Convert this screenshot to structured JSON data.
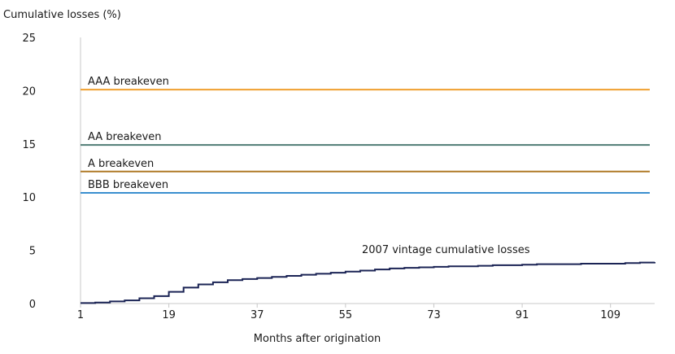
{
  "chart_data": {
    "type": "line",
    "ylabel": "Cumulative losses (%)",
    "xlabel": "Months after origination",
    "ylim": [
      0,
      25
    ],
    "xlim": [
      1,
      118
    ],
    "yticks": [
      0,
      5,
      10,
      15,
      20,
      25
    ],
    "xticks": [
      1,
      19,
      37,
      55,
      73,
      91,
      109
    ],
    "grid": false,
    "series": [
      {
        "name": "AAA breakeven",
        "color": "#F0A030",
        "x": [
          1,
          117
        ],
        "values": [
          20.1,
          20.1
        ]
      },
      {
        "name": "AA breakeven",
        "color": "#4F7C74",
        "x": [
          1,
          117
        ],
        "values": [
          14.9,
          14.9
        ]
      },
      {
        "name": "A breakeven",
        "color": "#B07A28",
        "x": [
          1,
          117
        ],
        "values": [
          12.4,
          12.4
        ]
      },
      {
        "name": "BBB breakeven",
        "color": "#3A8FCF",
        "x": [
          1,
          117
        ],
        "values": [
          10.4,
          10.4
        ]
      },
      {
        "name": "2007 vintage cumulative losses",
        "color": "#1B2455",
        "x": [
          1,
          4,
          7,
          10,
          13,
          16,
          19,
          22,
          25,
          28,
          31,
          34,
          37,
          40,
          43,
          46,
          49,
          52,
          55,
          58,
          61,
          64,
          67,
          70,
          73,
          76,
          79,
          82,
          85,
          88,
          91,
          94,
          97,
          100,
          103,
          106,
          109,
          112,
          115,
          118
        ],
        "values": [
          0.05,
          0.1,
          0.2,
          0.3,
          0.5,
          0.7,
          1.1,
          1.5,
          1.8,
          2.0,
          2.2,
          2.3,
          2.4,
          2.5,
          2.6,
          2.7,
          2.8,
          2.9,
          3.0,
          3.1,
          3.2,
          3.3,
          3.35,
          3.4,
          3.45,
          3.5,
          3.5,
          3.55,
          3.6,
          3.6,
          3.65,
          3.7,
          3.7,
          3.7,
          3.75,
          3.75,
          3.75,
          3.8,
          3.85,
          3.9
        ]
      }
    ]
  }
}
